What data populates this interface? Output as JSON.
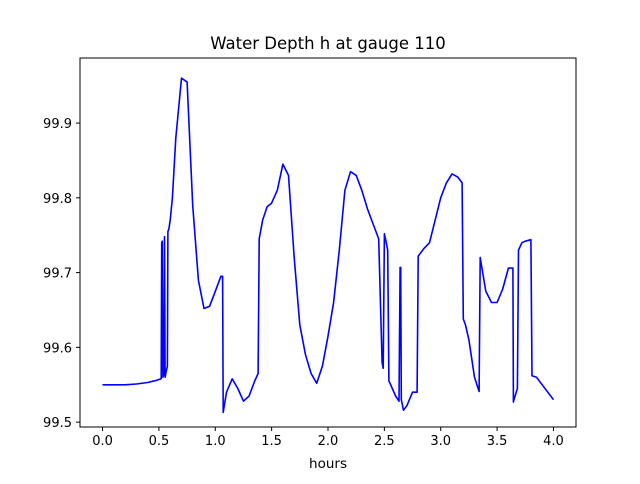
{
  "chart_data": {
    "type": "line",
    "title": "Water Depth h at gauge 110",
    "xlabel": "hours",
    "ylabel": "",
    "xlim": [
      -0.2,
      4.2
    ],
    "ylim": [
      99.4935,
      99.987
    ],
    "xticks": [
      0.0,
      0.5,
      1.0,
      1.5,
      2.0,
      2.5,
      3.0,
      3.5,
      4.0
    ],
    "xtick_labels": [
      "0.0",
      "0.5",
      "1.0",
      "1.5",
      "2.0",
      "2.5",
      "3.0",
      "3.5",
      "4.0"
    ],
    "yticks": [
      99.5,
      99.6,
      99.7,
      99.8,
      99.9
    ],
    "ytick_labels": [
      "99.5",
      "99.6",
      "99.7",
      "99.8",
      "99.9"
    ],
    "grid": false,
    "series": [
      {
        "color": "#0000ff",
        "x": [
          0.0,
          0.1,
          0.2,
          0.3,
          0.4,
          0.48,
          0.52,
          0.525,
          0.53,
          0.535,
          0.545,
          0.55,
          0.555,
          0.565,
          0.575,
          0.58,
          0.585,
          0.59,
          0.595,
          0.6,
          0.62,
          0.65,
          0.7,
          0.75,
          0.8,
          0.85,
          0.9,
          0.95,
          1.0,
          1.05,
          1.065,
          1.07,
          1.1,
          1.15,
          1.2,
          1.25,
          1.3,
          1.35,
          1.38,
          1.39,
          1.42,
          1.46,
          1.5,
          1.55,
          1.6,
          1.65,
          1.7,
          1.75,
          1.8,
          1.85,
          1.9,
          1.95,
          2.0,
          2.05,
          2.1,
          2.15,
          2.2,
          2.25,
          2.3,
          2.35,
          2.4,
          2.45,
          2.48,
          2.49,
          2.5,
          2.505,
          2.51,
          2.53,
          2.54,
          2.55,
          2.6,
          2.63,
          2.64,
          2.645,
          2.65,
          2.67,
          2.7,
          2.75,
          2.79,
          2.8,
          2.85,
          2.9,
          2.95,
          3.0,
          3.05,
          3.1,
          3.15,
          3.19,
          3.2,
          3.22,
          3.25,
          3.3,
          3.34,
          3.35,
          3.4,
          3.45,
          3.5,
          3.55,
          3.6,
          3.64,
          3.645,
          3.65,
          3.68,
          3.69,
          3.72,
          3.75,
          3.8,
          3.81,
          3.85,
          3.9,
          3.95,
          4.0
        ],
        "y": [
          99.55,
          99.55,
          99.55,
          99.551,
          99.553,
          99.556,
          99.558,
          99.74,
          99.742,
          99.56,
          99.565,
          99.748,
          99.56,
          99.568,
          99.575,
          99.755,
          99.757,
          99.76,
          99.765,
          99.77,
          99.8,
          99.88,
          99.96,
          99.955,
          99.79,
          99.69,
          99.652,
          99.655,
          99.675,
          99.695,
          99.695,
          99.513,
          99.54,
          99.558,
          99.545,
          99.528,
          99.535,
          99.555,
          99.565,
          99.745,
          99.77,
          99.788,
          99.793,
          99.81,
          99.845,
          99.83,
          99.72,
          99.63,
          99.59,
          99.565,
          99.552,
          99.575,
          99.615,
          99.66,
          99.73,
          99.81,
          99.835,
          99.83,
          99.81,
          99.785,
          99.765,
          99.745,
          99.58,
          99.572,
          99.752,
          99.748,
          99.745,
          99.73,
          99.555,
          99.552,
          99.535,
          99.528,
          99.707,
          99.707,
          99.53,
          99.516,
          99.522,
          99.54,
          99.54,
          99.722,
          99.732,
          99.74,
          99.77,
          99.8,
          99.82,
          99.832,
          99.828,
          99.82,
          99.638,
          99.63,
          99.61,
          99.56,
          99.541,
          99.72,
          99.675,
          99.66,
          99.66,
          99.678,
          99.706,
          99.706,
          99.527,
          99.53,
          99.545,
          99.73,
          99.74,
          99.742,
          99.744,
          99.562,
          99.56,
          99.55,
          99.54,
          99.53
        ]
      }
    ]
  }
}
